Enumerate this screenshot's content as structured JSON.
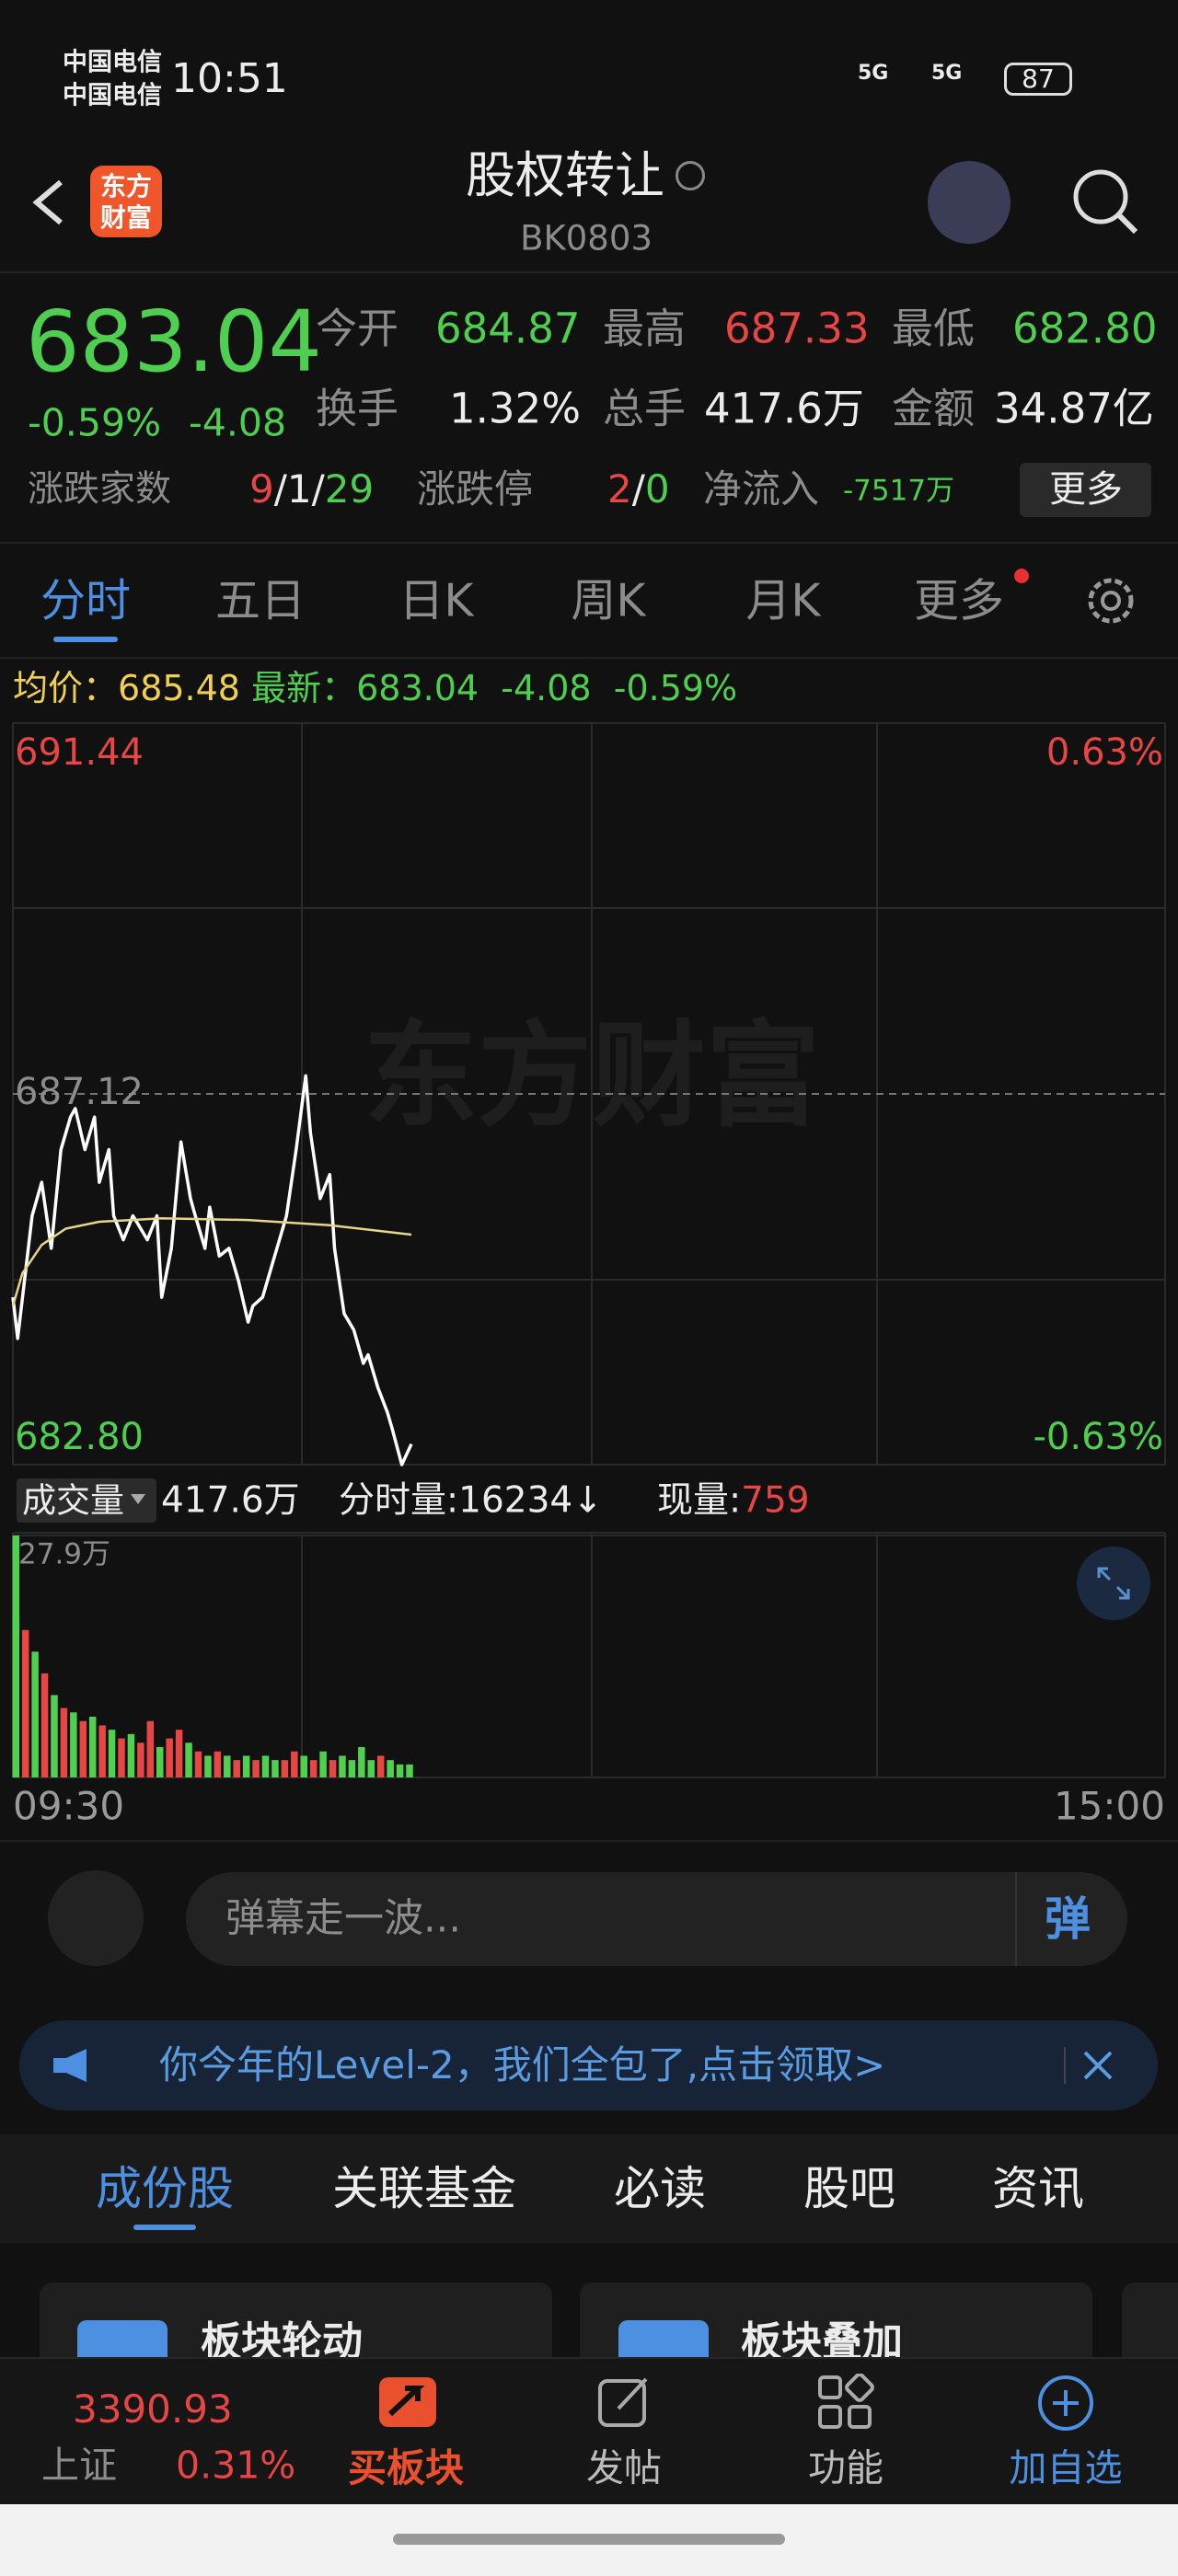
{
  "status_bar": {
    "carrier_1": "中国电信",
    "carrier_2": "中国电信",
    "time": "10:51",
    "signal_1": "5G",
    "signal_2": "5G",
    "battery": "87"
  },
  "header": {
    "logo_line_1": "东方",
    "logo_line_2": "财富",
    "title": "股权转让",
    "code": "BK0803"
  },
  "quote": {
    "price": "683.04",
    "change_pct": "-0.59%",
    "change": "-4.08",
    "stats": [
      {
        "label": "今开",
        "value": "684.87"
      },
      {
        "label": "最高",
        "value": "687.33"
      },
      {
        "label": "最低",
        "value": "682.80"
      },
      {
        "label": "换手",
        "value": "1.32%"
      },
      {
        "label": "总手",
        "value": "417.6万"
      },
      {
        "label": "金额",
        "value": "34.87亿"
      }
    ],
    "breadth": {
      "label": "涨跌家数",
      "up": "9",
      "flat": "1",
      "down": "29",
      "separator": "/"
    },
    "limits": {
      "label": "涨跌停",
      "up": "2",
      "down": "0",
      "separator": "/"
    },
    "net_inflow": {
      "label": "净流入",
      "value": "-7517万"
    },
    "more_button": "更多"
  },
  "tabs": [
    "分时",
    "五日",
    "日K",
    "周K",
    "月K",
    "更多"
  ],
  "info_line": {
    "avg_label": "均价：",
    "avg": "685.48",
    "last_label": "最新：",
    "last": "683.04",
    "change": "-4.08",
    "change_pct": "-0.59%"
  },
  "watermark": "东方财富",
  "chart_data": [
    {
      "type": "line",
      "xlim": [
        0,
        240
      ],
      "ylim": [
        682.8,
        691.44
      ],
      "yticks": [
        {
          "value": 682.8,
          "label": "682.80"
        },
        687.12,
        691.44
      ],
      "y2lim": [
        -0.63,
        0.63
      ],
      "y2ticks": [
        {
          "value": -0.63,
          "label": "-0.63%"
        },
        {
          "value": 0.63,
          "label": "0.63%"
        }
      ],
      "series": [
        {
          "color": "#ffffff",
          "x": [
            0,
            1,
            4,
            6,
            8,
            10,
            12,
            13,
            15,
            17,
            18,
            20,
            21,
            23,
            25,
            26,
            28,
            30,
            31,
            33,
            35,
            37,
            38,
            40,
            41,
            43,
            45,
            47,
            49,
            50,
            52,
            54,
            55,
            57,
            59,
            61,
            62,
            64,
            66,
            67,
            69,
            71,
            73,
            74,
            76,
            78,
            79,
            81,
            83
          ],
          "values": [
            684.75,
            684.27,
            685.7,
            686.09,
            685.32,
            686.47,
            686.85,
            686.95,
            686.47,
            686.85,
            686.09,
            686.47,
            685.7,
            685.42,
            685.7,
            685.61,
            685.42,
            685.7,
            684.75,
            685.32,
            686.56,
            685.9,
            685.7,
            685.32,
            685.8,
            685.23,
            685.32,
            684.94,
            684.46,
            684.65,
            684.75,
            685.13,
            685.32,
            685.7,
            686.47,
            687.33,
            686.66,
            685.9,
            686.18,
            685.32,
            684.56,
            684.37,
            683.98,
            684.08,
            683.7,
            683.41,
            683.22,
            682.8,
            683.04
          ]
        },
        {
          "color": "#e6d68a",
          "x": [
            0,
            2,
            6,
            11,
            18,
            31,
            49,
            66,
            83
          ],
          "values": [
            684.65,
            685.03,
            685.36,
            685.55,
            685.63,
            685.67,
            685.65,
            685.59,
            685.48
          ]
        }
      ]
    },
    {
      "type": "bar",
      "xlim": [
        0,
        240
      ],
      "ylim": [
        0,
        27.9
      ],
      "yticks": [
        {
          "value": 27.9,
          "label": "27.9万"
        }
      ],
      "xticks": [
        {
          "value": 0,
          "label": "09:30"
        },
        {
          "value": 240,
          "label": "15:00"
        }
      ],
      "x": [
        0,
        2,
        4,
        6,
        8,
        10,
        12,
        14,
        16,
        18,
        20,
        22,
        24,
        26,
        28,
        30,
        32,
        34,
        36,
        38,
        40,
        42,
        44,
        46,
        48,
        50,
        52,
        54,
        56,
        58,
        60,
        62,
        64,
        66,
        68,
        70,
        72,
        74,
        76,
        78,
        80,
        82
      ],
      "values": [
        27.9,
        17.0,
        14.5,
        12.0,
        9.5,
        8.0,
        7.5,
        6.5,
        7.0,
        6.0,
        5.5,
        4.5,
        5.0,
        4.0,
        6.5,
        3.5,
        4.5,
        5.5,
        4.0,
        3.0,
        2.5,
        3.0,
        2.5,
        2.0,
        2.5,
        2.0,
        2.5,
        2.0,
        2.0,
        3.0,
        2.5,
        2.0,
        3.0,
        2.0,
        2.5,
        2.0,
        3.5,
        2.0,
        2.5,
        2.0,
        1.5,
        1.5
      ],
      "colors": [
        "#4fd04f",
        "#e84545",
        "#4fd04f",
        "#e84545",
        "#4fd04f",
        "#e84545",
        "#4fd04f",
        "#e84545",
        "#4fd04f",
        "#e84545",
        "#4fd04f",
        "#e84545",
        "#4fd04f",
        "#e84545",
        "#e84545",
        "#4fd04f",
        "#e84545",
        "#e84545",
        "#4fd04f",
        "#e84545",
        "#4fd04f",
        "#e84545",
        "#4fd04f",
        "#e84545",
        "#4fd04f",
        "#e84545",
        "#4fd04f",
        "#4fd04f",
        "#e84545",
        "#e84545",
        "#4fd04f",
        "#e84545",
        "#4fd04f",
        "#e84545",
        "#4fd04f",
        "#4fd04f",
        "#4fd04f",
        "#4fd04f",
        "#e84545",
        "#4fd04f",
        "#4fd04f",
        "#4fd04f"
      ]
    }
  ],
  "volume_bar": {
    "selector": "成交量",
    "total": "417.6万",
    "minute_volume": "分时量:16234↓",
    "now_label": "现量:",
    "now_value": "759"
  },
  "danmaku": {
    "placeholder": "弹幕走一波...",
    "button": "弹"
  },
  "banner": {
    "text": "你今年的Level-2，我们全包了,点击领取>"
  },
  "sub_tabs": [
    "成份股",
    "关联基金",
    "必读",
    "股吧",
    "资讯"
  ],
  "cards": [
    "板块轮动",
    "板块叠加"
  ],
  "bottom_nav": {
    "index_value": "3390.93",
    "index_name": "上证",
    "index_change": "0.31%",
    "buy": "买板块",
    "items": [
      "发帖",
      "功能",
      "加自选"
    ]
  }
}
